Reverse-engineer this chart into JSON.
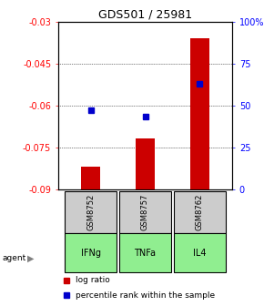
{
  "title": "GDS501 / 25981",
  "categories": [
    "IFNg",
    "TNFa",
    "IL4"
  ],
  "gsm_labels": [
    "GSM8752",
    "GSM8757",
    "GSM8762"
  ],
  "log_ratios": [
    -0.082,
    -0.072,
    -0.036
  ],
  "percentile_ranks": [
    47,
    43,
    63
  ],
  "left_ylim": [
    -0.09,
    -0.03
  ],
  "right_ylim": [
    0,
    100
  ],
  "left_yticks": [
    -0.09,
    -0.075,
    -0.06,
    -0.045,
    -0.03
  ],
  "right_yticks": [
    0,
    25,
    50,
    75,
    100
  ],
  "right_yticklabels": [
    "0",
    "25",
    "50",
    "75",
    "100%"
  ],
  "bar_color": "#cc0000",
  "dot_color": "#0000cc",
  "bar_width": 0.35,
  "agent_label": "agent",
  "gsm_box_color": "#cccccc",
  "agent_box_color": "#90ee90",
  "legend_log_ratio": "log ratio",
  "legend_percentile": "percentile rank within the sample"
}
